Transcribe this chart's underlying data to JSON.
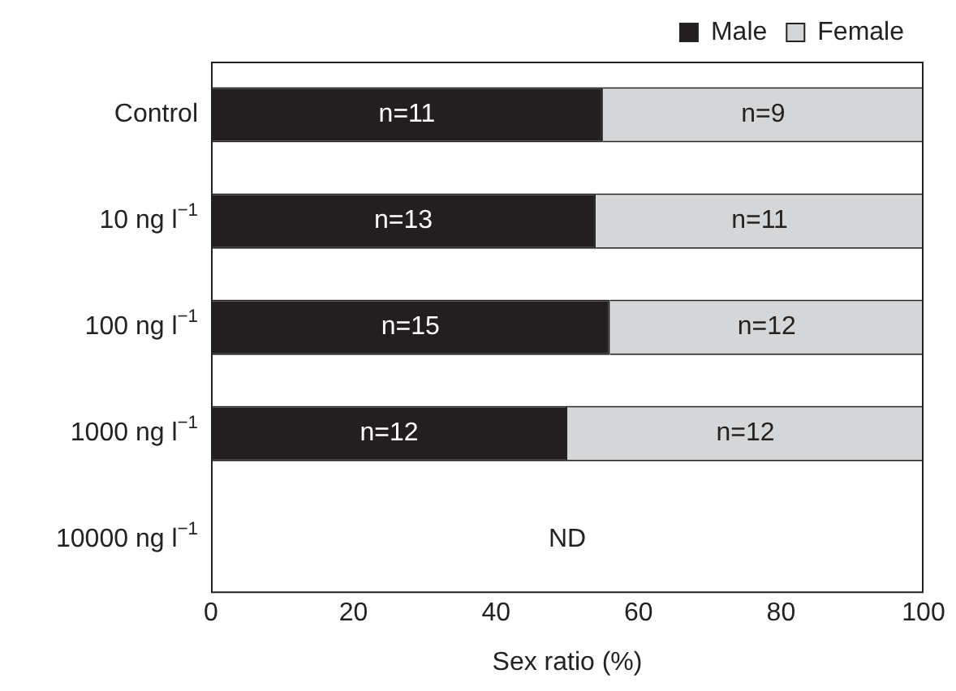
{
  "chart_data": {
    "type": "bar",
    "orientation": "horizontal",
    "stacked": true,
    "xlabel": "Sex ratio (%)",
    "categories": [
      "Control",
      "10 ng l$^{−1}$",
      "100 ng l$^{−1}$",
      "1000 ng l$^{−1}$",
      "10000 ng l$^{−1}$"
    ],
    "series": [
      {
        "name": "Male",
        "color": "#231f20",
        "values": [
          55,
          54,
          56,
          50,
          null
        ]
      },
      {
        "name": "Female",
        "color": "#d5d6d8",
        "values": [
          45,
          46,
          44,
          50,
          null
        ]
      }
    ],
    "xlim": [
      0,
      100
    ],
    "xticks": [
      0,
      20,
      40,
      60,
      80,
      100
    ],
    "grid": false,
    "legend": "top right",
    "annotations": [
      "n=11",
      "n=9",
      "n=13",
      "n=11",
      "n=15",
      "n=12",
      "n=12",
      "n=12",
      "ND"
    ]
  }
}
